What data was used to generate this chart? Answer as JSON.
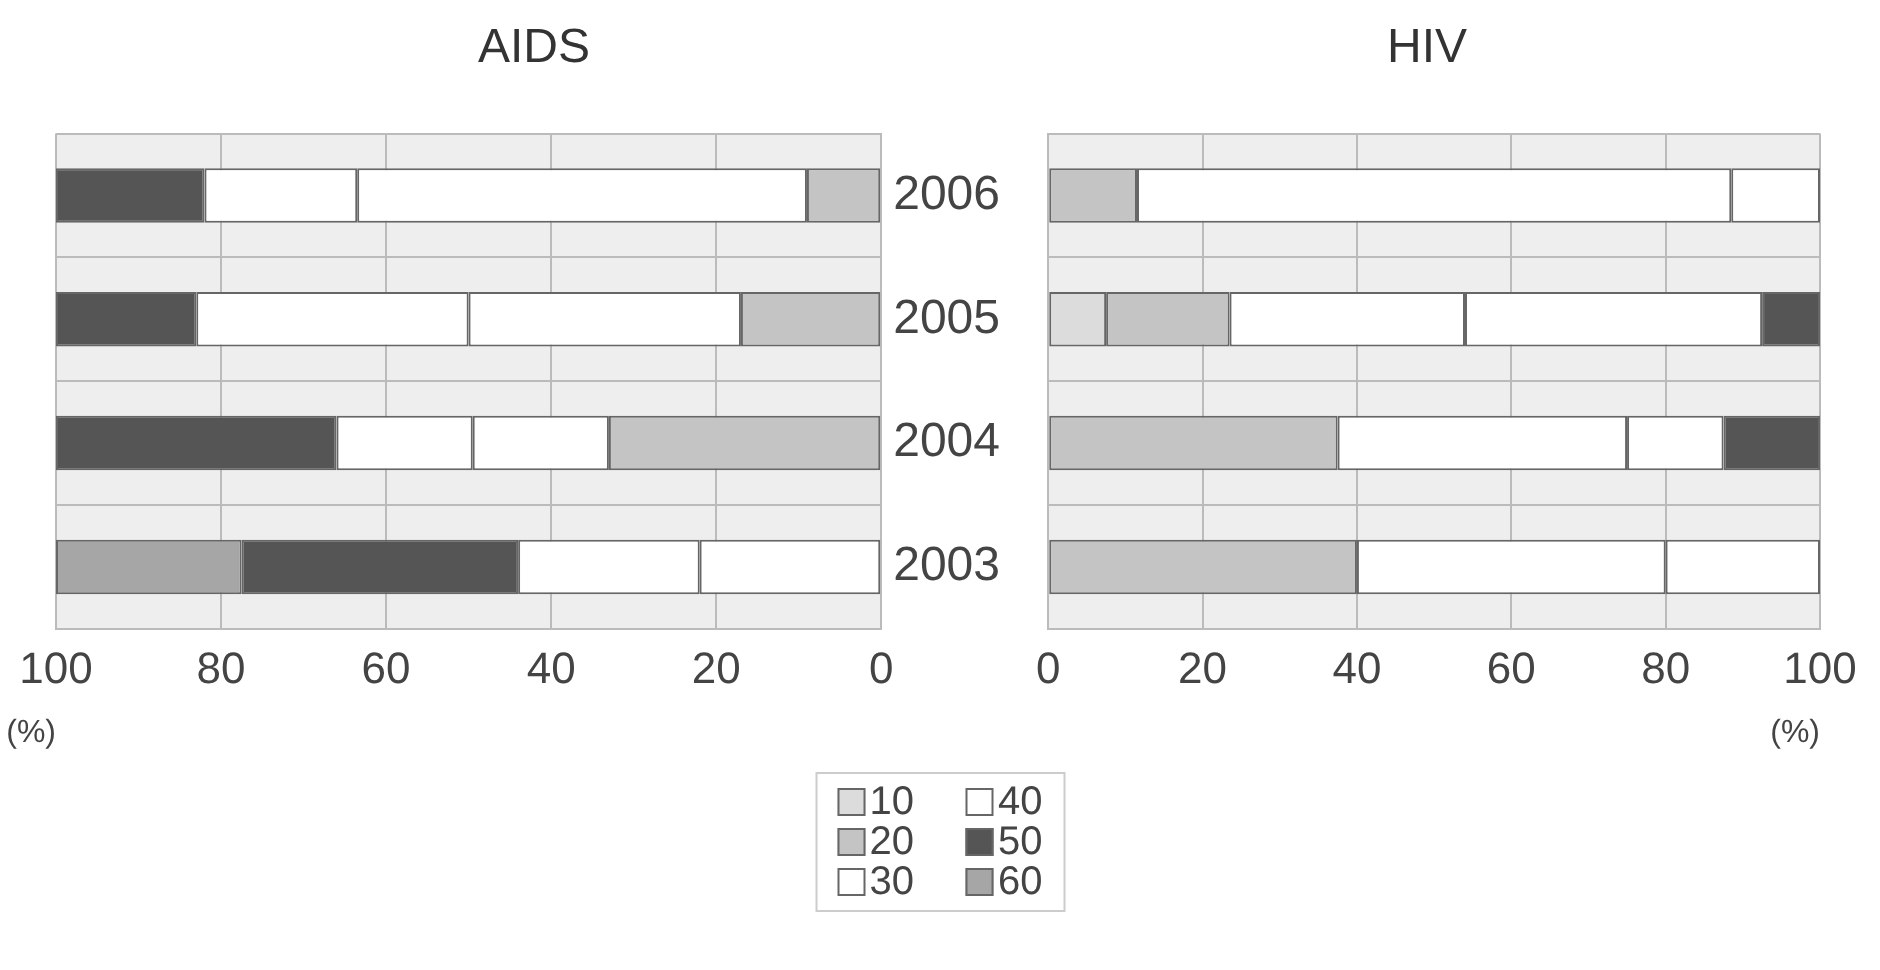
{
  "chart_data": [
    {
      "type": "bar",
      "orientation": "horizontal",
      "stacked": true,
      "title": "AIDS",
      "xlabel": "(%)",
      "categories": [
        "2006",
        "2005",
        "2004",
        "2003"
      ],
      "series": [
        {
          "color": "#dcdcdc",
          "values": [
            null,
            null,
            null,
            null
          ]
        },
        {
          "color": "#c4c4c4",
          "values": [
            9,
            17,
            33,
            null
          ]
        },
        {
          "color": "#ffffff",
          "values": [
            54.5,
            33,
            16.5,
            22
          ]
        },
        {
          "color": "#ffffff",
          "values": [
            18.5,
            33,
            16.5,
            22
          ]
        },
        {
          "color": "#555555",
          "values": [
            18,
            17,
            34,
            33.5
          ]
        },
        {
          "color": "#a6a6a6",
          "values": [
            null,
            null,
            null,
            22.5
          ]
        }
      ],
      "xlim": [
        100,
        0
      ],
      "xticks": [
        100,
        80,
        60,
        40,
        20,
        0
      ],
      "grid": true
    },
    {
      "type": "bar",
      "orientation": "horizontal",
      "stacked": true,
      "title": "HIV",
      "xlabel": "(%)",
      "categories": [
        "2006",
        "2005",
        "2004",
        "2003"
      ],
      "series": [
        {
          "name": "10",
          "color": "#dcdcdc",
          "values": [
            null,
            7.5,
            null,
            null
          ]
        },
        {
          "name": "20",
          "color": "#c4c4c4",
          "values": [
            11.5,
            16,
            37.5,
            40
          ]
        },
        {
          "name": "30",
          "color": "#ffffff",
          "values": [
            77,
            30.5,
            37.5,
            40
          ]
        },
        {
          "name": "40",
          "color": "#ffffff",
          "values": [
            11.5,
            38.5,
            12.5,
            20
          ]
        },
        {
          "name": "50",
          "color": "#555555",
          "values": [
            null,
            7.5,
            12.5,
            null
          ]
        },
        {
          "name": "60",
          "color": "#a6a6a6",
          "values": [
            null,
            null,
            null,
            null
          ]
        }
      ],
      "xlim": [
        0,
        100
      ],
      "xticks": [
        0,
        20,
        40,
        60,
        80,
        100
      ],
      "grid": true,
      "legend": "bottom",
      "tick_labels": "x"
    }
  ]
}
